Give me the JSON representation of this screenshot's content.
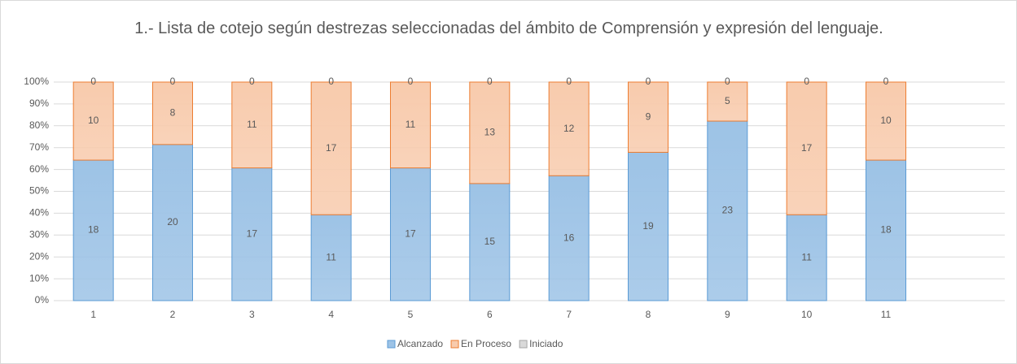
{
  "chart_data": {
    "type": "bar",
    "stacking": "percent",
    "title": "1.- Lista de cotejo según destrezas seleccionadas del ámbito de Comprensión y expresión del lenguaje.",
    "categories": [
      "1",
      "2",
      "3",
      "4",
      "5",
      "6",
      "7",
      "8",
      "9",
      "10",
      "11"
    ],
    "series": [
      {
        "name": "Alcanzado",
        "color": "#9dc3e6",
        "values": [
          18,
          20,
          17,
          11,
          17,
          15,
          16,
          19,
          23,
          11,
          18
        ]
      },
      {
        "name": "En Proceso",
        "color": "#f8cbad",
        "values": [
          10,
          8,
          11,
          17,
          11,
          13,
          12,
          9,
          5,
          17,
          10
        ]
      },
      {
        "name": "Iniciado",
        "color": "#d9d9d9",
        "values": [
          0,
          0,
          0,
          0,
          0,
          0,
          0,
          0,
          0,
          0,
          0
        ]
      }
    ],
    "ylim": [
      0,
      100
    ],
    "yticks": [
      {
        "value": 0,
        "label": "0%"
      },
      {
        "value": 10,
        "label": "10%"
      },
      {
        "value": 20,
        "label": "20%"
      },
      {
        "value": 30,
        "label": "30%"
      },
      {
        "value": 40,
        "label": "40%"
      },
      {
        "value": 50,
        "label": "50%"
      },
      {
        "value": 60,
        "label": "60%"
      },
      {
        "value": 70,
        "label": "70%"
      },
      {
        "value": 80,
        "label": "80%"
      },
      {
        "value": 90,
        "label": "90%"
      },
      {
        "value": 100,
        "label": "100%"
      }
    ],
    "grid": true,
    "legend": "bottom"
  }
}
